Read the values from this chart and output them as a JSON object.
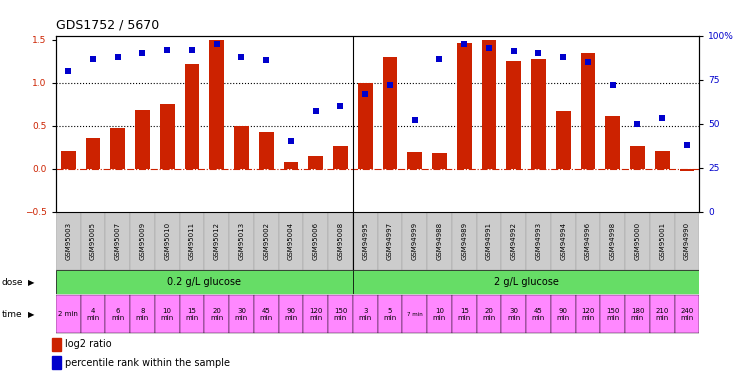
{
  "title": "GDS1752 / 5670",
  "samples": [
    "GSM95003",
    "GSM95005",
    "GSM95007",
    "GSM95009",
    "GSM95010",
    "GSM95011",
    "GSM95012",
    "GSM95013",
    "GSM95002",
    "GSM95004",
    "GSM95006",
    "GSM95008",
    "GSM94995",
    "GSM94997",
    "GSM94999",
    "GSM94988",
    "GSM94989",
    "GSM94991",
    "GSM94992",
    "GSM94993",
    "GSM94994",
    "GSM94996",
    "GSM94998",
    "GSM95000",
    "GSM95001",
    "GSM94990"
  ],
  "log2_ratio": [
    0.21,
    0.36,
    0.47,
    0.68,
    0.75,
    1.22,
    1.5,
    0.5,
    0.43,
    0.08,
    0.15,
    0.27,
    1.0,
    1.3,
    0.2,
    0.18,
    1.47,
    1.5,
    1.25,
    1.28,
    0.67,
    1.35,
    0.62,
    0.27,
    0.21,
    -0.02
  ],
  "percentile_rank": [
    80,
    87,
    88,
    90,
    92,
    92,
    95,
    88,
    86,
    40,
    57,
    60,
    67,
    72,
    52,
    87,
    95,
    93,
    91,
    90,
    88,
    85,
    72,
    50,
    53,
    38
  ],
  "n_samples": 26,
  "n_group1": 12,
  "n_group2": 14,
  "dose_label1": "0.2 g/L glucose",
  "dose_label2": "2 g/L glucose",
  "time_labels_group1": [
    "2 min",
    "4\nmin",
    "6\nmin",
    "8\nmin",
    "10\nmin",
    "15\nmin",
    "20\nmin",
    "30\nmin",
    "45\nmin",
    "90\nmin",
    "120\nmin",
    "150\nmin"
  ],
  "time_labels_group2": [
    "3\nmin",
    "5\nmin",
    "7 min",
    "10\nmin",
    "15\nmin",
    "20\nmin",
    "30\nmin",
    "45\nmin",
    "90\nmin",
    "120\nmin",
    "150\nmin",
    "180\nmin",
    "210\nmin",
    "240\nmin"
  ],
  "bar_color": "#cc2200",
  "dot_color": "#0000cc",
  "ylim_left": [
    -0.5,
    1.55
  ],
  "ylim_right": [
    0,
    100
  ],
  "yticks_left": [
    -0.5,
    0.0,
    0.5,
    1.0,
    1.5
  ],
  "yticks_right": [
    0,
    25,
    50,
    75,
    100
  ],
  "hline_values": [
    0.5,
    1.0
  ],
  "bar_width": 0.6,
  "dot_size": 18,
  "background_color": "#ffffff",
  "sample_label_bg": "#cccccc",
  "dose_bg": "#66dd66",
  "time_row_bg": "#ff88ff",
  "xticklabel_fontsize": 5.0,
  "title_fontsize": 9,
  "legend_fontsize": 7,
  "axis_fontsize": 6.5,
  "time_fontsize": 5.0
}
